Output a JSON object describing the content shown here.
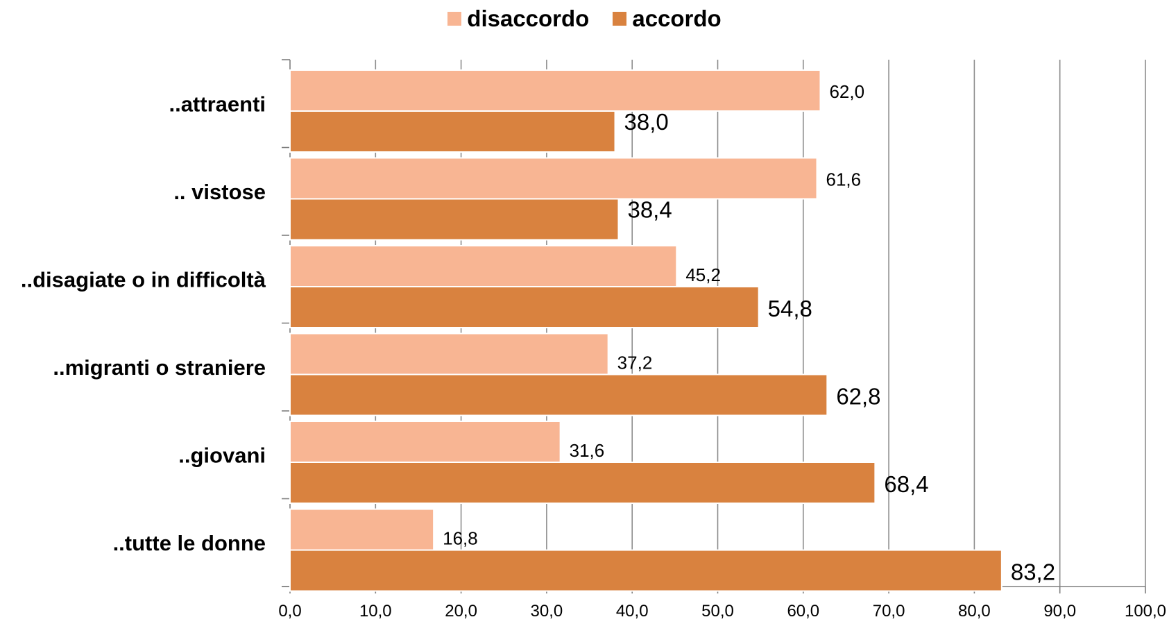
{
  "chart_data": {
    "type": "bar",
    "orientation": "horizontal",
    "categories": [
      "..attraenti",
      ".. vistose",
      "..disagiate o in difficoltà",
      "..migranti o straniere",
      "..giovani",
      "..tutte le donne"
    ],
    "series": [
      {
        "name": "disaccordo",
        "color": "#F8B593",
        "values": [
          62.0,
          61.6,
          45.2,
          37.2,
          31.6,
          16.8
        ],
        "labels": [
          "62,0",
          "61,6",
          "45,2",
          "37,2",
          "31,6",
          "16,8"
        ]
      },
      {
        "name": "accordo",
        "color": "#D9823F",
        "values": [
          38.0,
          38.4,
          54.8,
          62.8,
          68.4,
          83.2
        ],
        "labels": [
          "38,0",
          "38,4",
          "54,8",
          "62,8",
          "68,4",
          "83,2"
        ]
      }
    ],
    "xlim": [
      0,
      100
    ],
    "xticks": [
      0,
      10,
      20,
      30,
      40,
      50,
      60,
      70,
      80,
      90,
      100
    ],
    "xtick_labels": [
      "0,0",
      "10,0",
      "20,0",
      "30,0",
      "40,0",
      "50,0",
      "60,0",
      "70,0",
      "80,0",
      "90,0",
      "100,0"
    ],
    "grid": true,
    "legend_position": "top-center"
  }
}
